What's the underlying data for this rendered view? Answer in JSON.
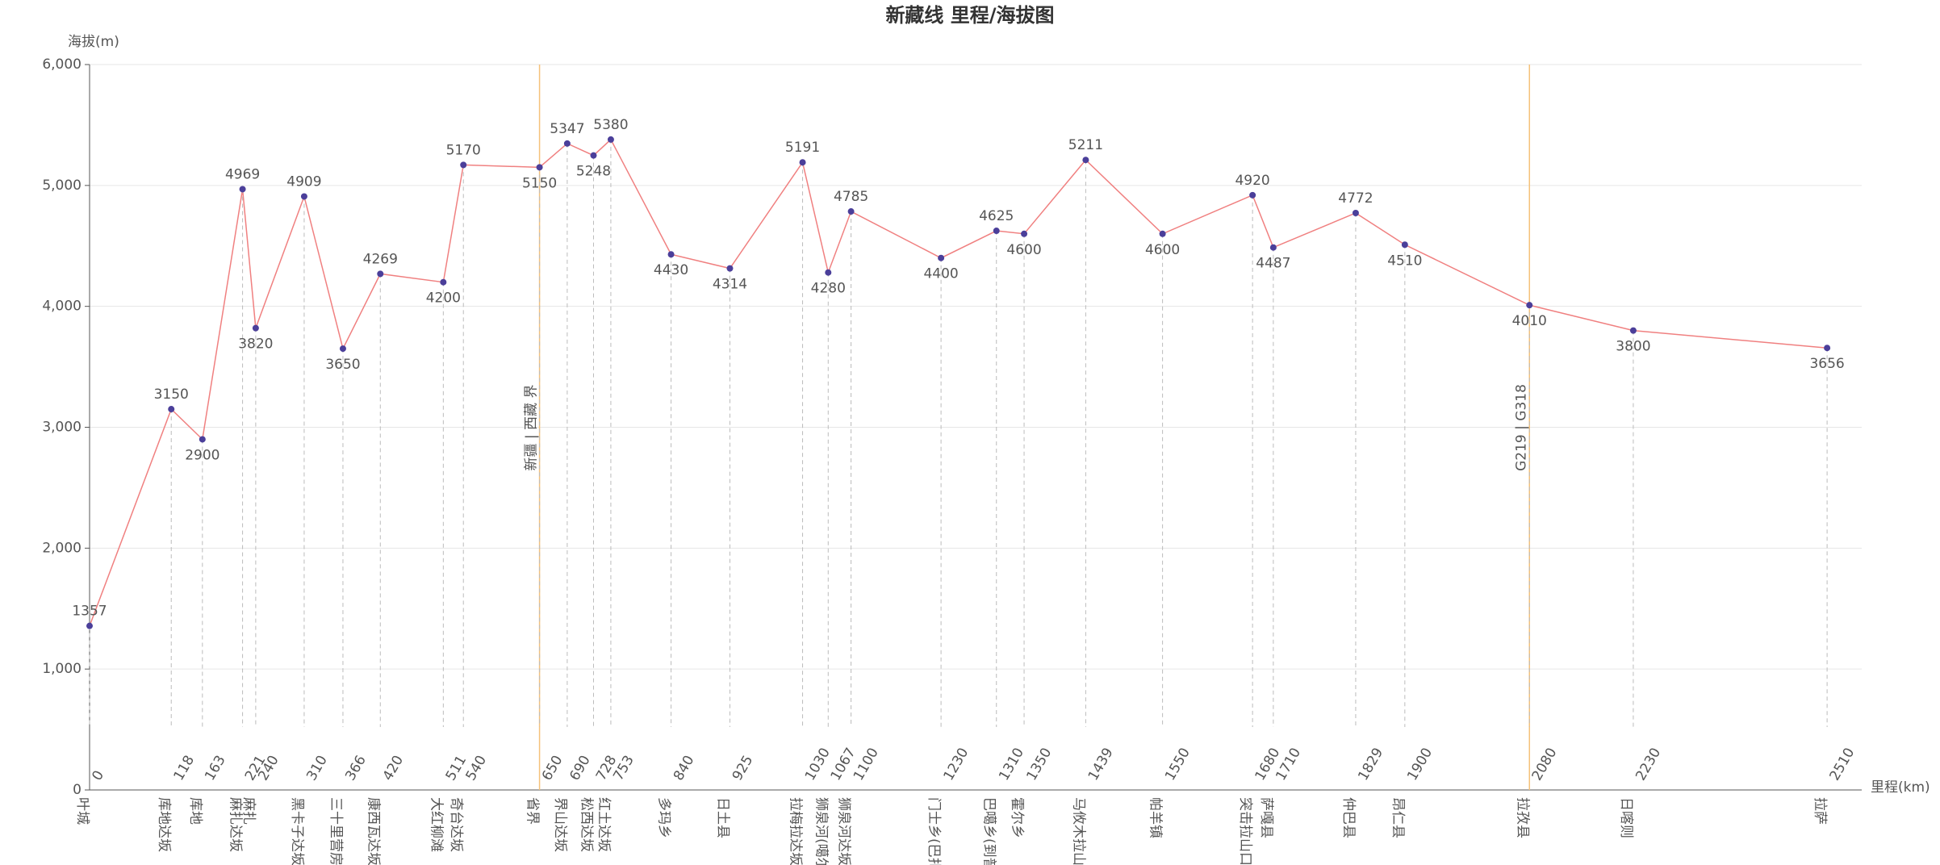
{
  "chart_data": {
    "type": "line",
    "title": "新藏线 里程/海拔图",
    "y_label": "海拔(m)",
    "x_label": "里程(km)",
    "x": [
      0,
      118,
      163,
      221,
      240,
      310,
      366,
      420,
      511,
      540,
      650,
      690,
      728,
      753,
      840,
      925,
      1030,
      1067,
      1100,
      1230,
      1310,
      1350,
      1439,
      1550,
      1680,
      1710,
      1829,
      1900,
      2080,
      2230,
      2510
    ],
    "values": [
      1357,
      3150,
      2900,
      4969,
      3820,
      4909,
      3650,
      4269,
      4200,
      5170,
      5150,
      5347,
      5248,
      5380,
      4430,
      4314,
      5191,
      4280,
      4785,
      4400,
      4625,
      4600,
      5211,
      4600,
      4920,
      4487,
      4772,
      4510,
      4010,
      3800,
      3656
    ],
    "point_labels": [
      "叶城",
      "库地达坂",
      "库地",
      "麻扎达坂",
      "麻扎",
      "黑卡子达坂",
      "三十里营房",
      "康西瓦达坂",
      "大红柳滩",
      "奇台达坂",
      "省界",
      "界山达坂",
      "松西达坂",
      "红土达坂",
      "多玛乡",
      "日土县",
      "拉梅拉达坂",
      "狮泉河(噶尔)",
      "狮泉河达坂",
      "门士乡(巴扎达)",
      "巴噶乡(到普兰)",
      "霍尔乡",
      "马攸木拉山",
      "帕羊镇",
      "突击拉山口",
      "萨嘎县",
      "仲巴县",
      "昂仁县",
      "拉孜县",
      "日喀则",
      "拉萨"
    ],
    "color": "#f08080",
    "point_color": "#4b3f9a",
    "xlim": [
      0,
      2560
    ],
    "ylim": [
      0,
      6000
    ],
    "yticks": [
      0,
      {
        "value": 1000,
        "label": "1,000"
      },
      {
        "value": 2000,
        "label": "2,000"
      },
      {
        "value": 3000,
        "label": "3,000"
      },
      {
        "value": 4000,
        "label": "4,000"
      },
      {
        "value": 5000,
        "label": "5,000"
      },
      {
        "value": 6000,
        "label": "6,000"
      }
    ],
    "grid": true,
    "annotations": [
      {
        "x": 650,
        "label": "新疆 | 西藏 界"
      },
      {
        "x": 2080,
        "label": "G219 | G318"
      }
    ],
    "annotation_color": "#f5c27a"
  }
}
